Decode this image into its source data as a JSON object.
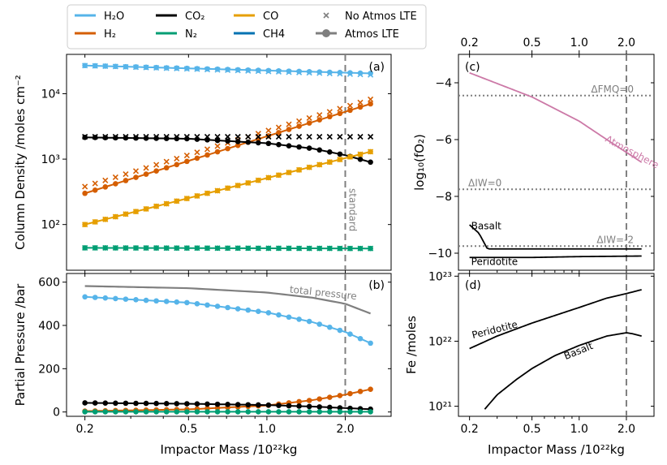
{
  "chart_data": [
    {
      "id": "a",
      "type": "scatter",
      "panel_label": "(a)",
      "ylabel": "Column Density /moles cm⁻²",
      "xscale": "log",
      "yscale": "log",
      "xlim": [
        0.17,
        3.0
      ],
      "ylim": [
        20,
        40000
      ],
      "xticks": [
        0.2,
        0.5,
        1.0,
        2.0
      ],
      "yticks": [
        {
          "v": 100,
          "label": "10²"
        },
        {
          "v": 1000,
          "label": "10³"
        },
        {
          "v": 10000,
          "label": "10⁴"
        }
      ],
      "vline": {
        "x": 2.0,
        "label": "standard"
      },
      "series": [
        {
          "name": "H₂O",
          "color": "#56B4E9",
          "lte": [
            [
              0.2,
              27000
            ],
            [
              2.5,
              20500
            ]
          ],
          "nolte": [
            [
              0.2,
              27000
            ],
            [
              2.5,
              19500
            ]
          ]
        },
        {
          "name": "H₂",
          "color": "#D55E00",
          "lte": [
            [
              0.2,
              300
            ],
            [
              2.5,
              7000
            ]
          ],
          "nolte": [
            [
              0.2,
              380
            ],
            [
              2.5,
              8200
            ]
          ]
        },
        {
          "name": "CO₂",
          "color": "#000000",
          "lte": [
            [
              0.2,
              2150
            ],
            [
              0.5,
              2050
            ],
            [
              1.0,
              1750
            ],
            [
              1.5,
              1450
            ],
            [
              2.0,
              1150
            ],
            [
              2.5,
              900
            ]
          ],
          "nolte": [
            [
              0.2,
              2200
            ],
            [
              2.5,
              2200
            ]
          ]
        },
        {
          "name": "N₂",
          "color": "#009E73",
          "lte": [
            [
              0.2,
              44
            ],
            [
              2.5,
              43
            ]
          ],
          "nolte": [
            [
              0.2,
              44
            ],
            [
              2.5,
              43
            ]
          ]
        },
        {
          "name": "CO",
          "color": "#E69F00",
          "lte": [
            [
              0.2,
              100
            ],
            [
              2.5,
              1300
            ]
          ],
          "nolte": [
            [
              0.2,
              100
            ],
            [
              2.5,
              1300
            ]
          ]
        }
      ]
    },
    {
      "id": "b",
      "type": "scatter",
      "panel_label": "(b)",
      "ylabel": "Partial Pressure /bar",
      "xlabel": "Impactor Mass /10²²kg",
      "xscale": "log",
      "yscale": "linear",
      "xlim": [
        0.17,
        3.0
      ],
      "ylim": [
        -20,
        640
      ],
      "xticks": [
        0.2,
        0.5,
        1.0,
        2.0
      ],
      "yticks": [
        {
          "v": 0,
          "label": "0"
        },
        {
          "v": 200,
          "label": "200"
        },
        {
          "v": 400,
          "label": "400"
        },
        {
          "v": 600,
          "label": "600"
        }
      ],
      "vline": {
        "x": 2.0
      },
      "total_pressure": {
        "label": "total pressure",
        "color": "#7f7f7f",
        "points": [
          [
            0.2,
            582
          ],
          [
            0.5,
            572
          ],
          [
            1.0,
            552
          ],
          [
            1.5,
            528
          ],
          [
            2.0,
            500
          ],
          [
            2.5,
            455
          ]
        ]
      },
      "series": [
        {
          "name": "H₂O",
          "color": "#56B4E9",
          "lte": [
            [
              0.2,
              532
            ],
            [
              0.5,
              505
            ],
            [
              1.0,
              460
            ],
            [
              1.5,
              415
            ],
            [
              2.0,
              370
            ],
            [
              2.5,
              318
            ]
          ]
        },
        {
          "name": "H₂",
          "color": "#D55E00",
          "lte": [
            [
              0.2,
              4
            ],
            [
              0.5,
              12
            ],
            [
              1.0,
              30
            ],
            [
              1.5,
              55
            ],
            [
              2.0,
              80
            ],
            [
              2.5,
              105
            ]
          ]
        },
        {
          "name": "CO₂",
          "color": "#000000",
          "lte": [
            [
              0.2,
              42
            ],
            [
              0.5,
              38
            ],
            [
              1.0,
              32
            ],
            [
              1.5,
              25
            ],
            [
              2.0,
              18
            ],
            [
              2.5,
              13
            ]
          ]
        },
        {
          "name": "N₂",
          "color": "#009E73",
          "lte": [
            [
              0.2,
              1
            ],
            [
              2.5,
              1
            ]
          ]
        }
      ]
    },
    {
      "id": "c",
      "type": "line",
      "panel_label": "(c)",
      "ylabel": "log₁₀(fO₂)",
      "xscale": "log",
      "yscale": "linear",
      "xlim": [
        0.17,
        3.0
      ],
      "ylim": [
        -10.6,
        -3.0
      ],
      "xticks": [
        0.2,
        0.5,
        1.0,
        2.0
      ],
      "yticks": [
        {
          "v": -10,
          "label": "−10"
        },
        {
          "v": -8,
          "label": "−8"
        },
        {
          "v": -6,
          "label": "−6"
        },
        {
          "v": -4,
          "label": "−4"
        }
      ],
      "vline": {
        "x": 2.0
      },
      "hlines": [
        {
          "v": -4.45,
          "label": "ΔFMQ=0"
        },
        {
          "v": -7.75,
          "label": "ΔIW=0"
        },
        {
          "v": -9.75,
          "label": "ΔIW=-2"
        }
      ],
      "curves": [
        {
          "label": "Atmosphere",
          "color": "#CC79A7",
          "points": [
            [
              0.2,
              -3.65
            ],
            [
              0.5,
              -4.5
            ],
            [
              1.0,
              -5.35
            ],
            [
              1.5,
              -6.0
            ],
            [
              2.0,
              -6.45
            ],
            [
              2.5,
              -6.8
            ]
          ]
        },
        {
          "label": "Basalt",
          "color": "#000000",
          "points": [
            [
              0.2,
              -9.0
            ],
            [
              0.23,
              -9.3
            ],
            [
              0.26,
              -9.85
            ],
            [
              0.5,
              -9.85
            ],
            [
              1.0,
              -9.85
            ],
            [
              2.5,
              -9.85
            ]
          ]
        },
        {
          "label": "Peridotite",
          "color": "#000000",
          "points": [
            [
              0.2,
              -10.15
            ],
            [
              0.5,
              -10.15
            ],
            [
              1.0,
              -10.12
            ],
            [
              2.5,
              -10.1
            ]
          ]
        }
      ]
    },
    {
      "id": "d",
      "type": "line",
      "panel_label": "(d)",
      "ylabel": "Fe /moles",
      "xlabel": "Impactor Mass /10²²kg",
      "xscale": "log",
      "yscale": "log",
      "xlim": [
        0.17,
        3.0
      ],
      "ylim": [
        7e+20,
        1.1e+23
      ],
      "xticks": [
        0.2,
        0.5,
        1.0,
        2.0
      ],
      "yticks": [
        {
          "v": 1e+21,
          "label": "10²¹"
        },
        {
          "v": 1e+22,
          "label": "10²²"
        },
        {
          "v": 1e+23,
          "label": "10²³"
        }
      ],
      "vline": {
        "x": 2.0
      },
      "curves": [
        {
          "label": "Peridotite",
          "color": "#000000",
          "points": [
            [
              0.2,
              7.7e+21
            ],
            [
              0.3,
              1.2e+22
            ],
            [
              0.5,
              1.9e+22
            ],
            [
              1.0,
              3.3e+22
            ],
            [
              1.5,
              4.6e+22
            ],
            [
              2.0,
              5.4e+22
            ],
            [
              2.5,
              6.2e+22
            ]
          ]
        },
        {
          "label": "Basalt",
          "color": "#000000",
          "points": [
            [
              0.25,
              9e+20
            ],
            [
              0.3,
              1.5e+21
            ],
            [
              0.4,
              2.6e+21
            ],
            [
              0.5,
              3.8e+21
            ],
            [
              0.7,
              6e+21
            ],
            [
              1.0,
              8.6e+21
            ],
            [
              1.5,
              1.2e+22
            ],
            [
              2.0,
              1.35e+22
            ],
            [
              2.2,
              1.3e+22
            ],
            [
              2.5,
              1.2e+22
            ]
          ]
        }
      ]
    }
  ],
  "legend": {
    "items": [
      {
        "label": "H₂O",
        "color": "#56B4E9",
        "kind": "line"
      },
      {
        "label": "H₂",
        "color": "#D55E00",
        "kind": "line"
      },
      {
        "label": "CO₂",
        "color": "#000000",
        "kind": "line"
      },
      {
        "label": "N₂",
        "color": "#009E73",
        "kind": "line"
      },
      {
        "label": "CO",
        "color": "#E69F00",
        "kind": "line"
      },
      {
        "label": "CH4",
        "color": "#0072B2",
        "kind": "line"
      },
      {
        "label": "No Atmos LTE",
        "color": "#7f7f7f",
        "kind": "cross"
      },
      {
        "label": "Atmos LTE",
        "color": "#7f7f7f",
        "kind": "lineDot"
      }
    ]
  },
  "top_axis_ticks": [
    0.2,
    0.5,
    1.0,
    2.0
  ]
}
